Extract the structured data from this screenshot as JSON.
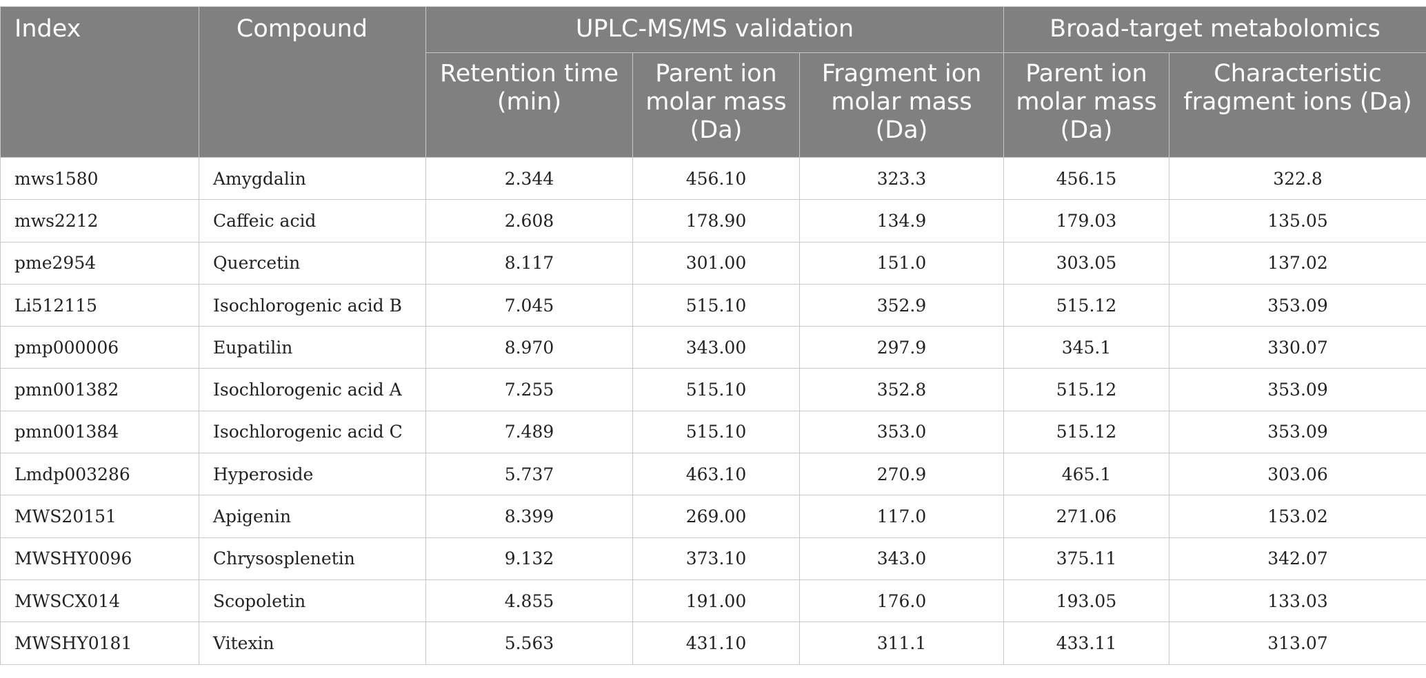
{
  "table": {
    "headers": {
      "index": "Index",
      "compound": "Compound",
      "group_uplc": "UPLC-MS/MS validation",
      "group_broad": "Broad-target metabolomics",
      "retention_time": "Retention time (min)",
      "parent_ion_uplc": "Parent ion molar mass (Da)",
      "fragment_ion_uplc": "Fragment ion molar mass (Da)",
      "parent_ion_broad": "Parent ion molar mass (Da)",
      "characteristic_fragment": "Characteristic fragment ions (Da)"
    },
    "rows": [
      [
        "mws1580",
        "Amygdalin",
        "2.344",
        "456.10",
        "323.3",
        "456.15",
        "322.8"
      ],
      [
        "mws2212",
        "Caffeic acid",
        "2.608",
        "178.90",
        "134.9",
        "179.03",
        "135.05"
      ],
      [
        "pme2954",
        "Quercetin",
        "8.117",
        "301.00",
        "151.0",
        "303.05",
        "137.02"
      ],
      [
        "Li512115",
        "Isochlorogenic acid B",
        "7.045",
        "515.10",
        "352.9",
        "515.12",
        "353.09"
      ],
      [
        "pmp000006",
        "Eupatilin",
        "8.970",
        "343.00",
        "297.9",
        "345.1",
        "330.07"
      ],
      [
        "pmn001382",
        "Isochlorogenic acid A",
        "7.255",
        "515.10",
        "352.8",
        "515.12",
        "353.09"
      ],
      [
        "pmn001384",
        "Isochlorogenic acid C",
        "7.489",
        "515.10",
        "353.0",
        "515.12",
        "353.09"
      ],
      [
        "Lmdp003286",
        "Hyperoside",
        "5.737",
        "463.10",
        "270.9",
        "465.1",
        "303.06"
      ],
      [
        "MWS20151",
        "Apigenin",
        "8.399",
        "269.00",
        "117.0",
        "271.06",
        "153.02"
      ],
      [
        "MWSHY0096",
        "Chrysosplenetin",
        "9.132",
        "373.10",
        "343.0",
        "375.11",
        "342.07"
      ],
      [
        "MWSCX014",
        "Scopoletin",
        "4.855",
        "191.00",
        "176.0",
        "193.05",
        "133.03"
      ],
      [
        "MWSHY0181",
        "Vitexin",
        "5.563",
        "431.10",
        "311.1",
        "433.11",
        "313.07"
      ]
    ],
    "colors": {
      "header_bg": "#808080",
      "header_text": "#ffffff",
      "grid": "#c8c8c8"
    }
  }
}
